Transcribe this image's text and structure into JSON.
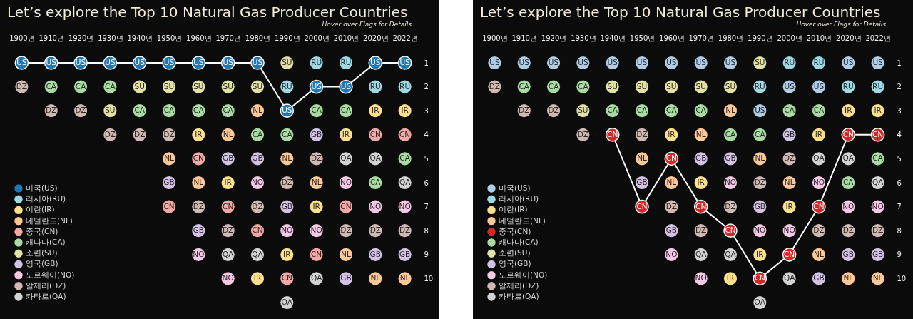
{
  "chart_data": [
    {
      "type": "line",
      "title": "Let’s explore the Top 10 Natural Gas Producer Countries",
      "subtitle": "Hover over Flags for Details",
      "categories": [
        "1900년",
        "1910년",
        "1920년",
        "1930년",
        "1940년",
        "1950년",
        "1960년",
        "1970년",
        "1980년",
        "1990년",
        "2000년",
        "2010년",
        "2020년",
        "2022년"
      ],
      "ylim": [
        11,
        1
      ],
      "yticks": [
        1,
        2,
        3,
        4,
        5,
        6,
        7,
        8,
        9,
        10
      ],
      "grid": false,
      "legend": "bottom left",
      "marker": "circle",
      "series": [
        {
          "name": "미국(US)",
          "type": "line",
          "color": "#1f77b4",
          "values": [
            1,
            1,
            1,
            1,
            1,
            1,
            1,
            1,
            1,
            3,
            2,
            2,
            1,
            1
          ],
          "value_labels": [
            "US",
            "US",
            "US",
            "US",
            "US",
            "US",
            "US",
            "US",
            "US",
            "US",
            "US",
            "US",
            "US",
            "US"
          ]
        },
        {
          "name": "러시아(RU)",
          "type": "scatter",
          "color": "#9edae5",
          "values": [
            null,
            null,
            null,
            null,
            null,
            null,
            null,
            null,
            null,
            2,
            1,
            1,
            2,
            2
          ],
          "value_labels": [
            null,
            null,
            null,
            null,
            null,
            null,
            null,
            null,
            null,
            "RU",
            "RU",
            "RU",
            "RU",
            "RU"
          ]
        },
        {
          "name": "이란(IR)",
          "type": "scatter",
          "color": "#fde08b",
          "values": [
            null,
            null,
            null,
            null,
            null,
            null,
            4,
            6,
            10,
            9,
            7,
            4,
            3,
            3
          ],
          "value_labels": [
            null,
            null,
            null,
            null,
            null,
            null,
            "IR",
            "IR",
            "IR",
            "IR",
            "IR",
            "IR",
            "IR",
            "IR"
          ]
        },
        {
          "name": "네덜란드(NL)",
          "type": "scatter",
          "color": "#ffc896",
          "values": [
            null,
            null,
            null,
            null,
            null,
            5,
            6,
            4,
            3,
            5,
            6,
            9,
            10,
            10
          ],
          "value_labels": [
            null,
            null,
            null,
            null,
            null,
            "NL",
            "NL",
            "NL",
            "NL",
            "NL",
            "NL",
            "NL",
            "NL",
            "NL"
          ]
        },
        {
          "name": "중국(CN)",
          "type": "scatter",
          "color": "#f4a7a3",
          "values": [
            null,
            null,
            null,
            null,
            null,
            7,
            5,
            7,
            8,
            10,
            9,
            7,
            4,
            4
          ],
          "value_labels": [
            null,
            null,
            null,
            null,
            null,
            "CN",
            "CN",
            "CN",
            "CN",
            "CN",
            "CN",
            "CN",
            "CN",
            "CN"
          ]
        },
        {
          "name": "캐나다(CA)",
          "type": "scatter",
          "color": "#a8dca3",
          "values": [
            null,
            2,
            2,
            2,
            3,
            3,
            3,
            3,
            4,
            4,
            3,
            3,
            6,
            5
          ],
          "value_labels": [
            null,
            "CA",
            "CA",
            "CA",
            "CA",
            "CA",
            "CA",
            "CA",
            "CA",
            "CA",
            "CA",
            "CA",
            "CA",
            "CA"
          ]
        },
        {
          "name": "소련(SU)",
          "type": "scatter",
          "color": "#e2e3a3",
          "values": [
            null,
            null,
            null,
            3,
            2,
            2,
            2,
            2,
            2,
            1,
            null,
            null,
            null,
            null
          ],
          "value_labels": [
            null,
            null,
            null,
            "SU",
            "SU",
            "SU",
            "SU",
            "SU",
            "SU",
            "SU",
            null,
            null,
            null,
            null
          ]
        },
        {
          "name": "영국(GB)",
          "type": "scatter",
          "color": "#d2c2e6",
          "values": [
            null,
            null,
            null,
            null,
            null,
            6,
            8,
            5,
            5,
            7,
            4,
            10,
            9,
            9
          ],
          "value_labels": [
            null,
            null,
            null,
            null,
            null,
            "GB",
            "GB",
            "GB",
            "GB",
            "GB",
            "GB",
            "GB",
            "GB",
            "GB"
          ]
        },
        {
          "name": "노르웨이(NO)",
          "type": "scatter",
          "color": "#f7c8e6",
          "values": [
            null,
            null,
            null,
            null,
            null,
            null,
            9,
            10,
            6,
            8,
            8,
            6,
            7,
            7
          ],
          "value_labels": [
            null,
            null,
            null,
            null,
            null,
            null,
            "NO",
            "NO",
            "NO",
            "NO",
            "NO",
            "NO",
            "NO",
            "NO"
          ]
        },
        {
          "name": "알제리(DZ)",
          "type": "scatter",
          "color": "#d2b8b2",
          "values": [
            2,
            3,
            3,
            4,
            4,
            4,
            7,
            8,
            7,
            6,
            5,
            8,
            8,
            8
          ],
          "value_labels": [
            "DZ",
            "DZ",
            "DZ",
            "DZ",
            "DZ",
            "DZ",
            "DZ",
            "DZ",
            "DZ",
            "DZ",
            "DZ",
            "DZ",
            "DZ",
            "DZ"
          ]
        },
        {
          "name": "카타르(QA)",
          "type": "scatter",
          "color": "#d3d3d3",
          "values": [
            null,
            null,
            null,
            null,
            null,
            null,
            null,
            9,
            9,
            11,
            10,
            5,
            5,
            6
          ],
          "value_labels": [
            null,
            null,
            null,
            null,
            null,
            null,
            null,
            "QA",
            "QA",
            "QA",
            "QA",
            "QA",
            "QA",
            "QA"
          ]
        }
      ]
    },
    {
      "type": "line",
      "title": "Let’s explore the Top 10 Natural Gas Producer Countries",
      "subtitle": "Hover over Flags for Details",
      "categories": [
        "1900년",
        "1910년",
        "1920년",
        "1930년",
        "1940년",
        "1950년",
        "1960년",
        "1970년",
        "1980년",
        "1990년",
        "2000년",
        "2010년",
        "2020년",
        "2022년"
      ],
      "ylim": [
        11,
        1
      ],
      "yticks": [
        1,
        2,
        3,
        4,
        5,
        6,
        7,
        8,
        9,
        10
      ],
      "grid": false,
      "legend": "bottom left",
      "marker": "circle",
      "series": [
        {
          "name": "미국(US)",
          "type": "scatter",
          "color": "#aecde8",
          "values": [
            1,
            1,
            1,
            1,
            1,
            1,
            1,
            1,
            1,
            3,
            2,
            2,
            1,
            1
          ],
          "value_labels": [
            "US",
            "US",
            "US",
            "US",
            "US",
            "US",
            "US",
            "US",
            "US",
            "US",
            "US",
            "US",
            "US",
            "US"
          ]
        },
        {
          "name": "러시아(RU)",
          "type": "scatter",
          "color": "#9edae5",
          "values": [
            null,
            null,
            null,
            null,
            null,
            null,
            null,
            null,
            null,
            2,
            1,
            1,
            2,
            2
          ],
          "value_labels": [
            null,
            null,
            null,
            null,
            null,
            null,
            null,
            null,
            null,
            "RU",
            "RU",
            "RU",
            "RU",
            "RU"
          ]
        },
        {
          "name": "이란(IR)",
          "type": "scatter",
          "color": "#fde08b",
          "values": [
            null,
            null,
            null,
            null,
            null,
            null,
            4,
            6,
            10,
            9,
            7,
            4,
            3,
            3
          ],
          "value_labels": [
            null,
            null,
            null,
            null,
            null,
            null,
            "IR",
            "IR",
            "IR",
            "IR",
            "IR",
            "IR",
            "IR",
            "IR"
          ]
        },
        {
          "name": "네덜란드(NL)",
          "type": "scatter",
          "color": "#ffc896",
          "values": [
            null,
            null,
            null,
            null,
            null,
            5,
            6,
            4,
            3,
            5,
            6,
            9,
            10,
            10
          ],
          "value_labels": [
            null,
            null,
            null,
            null,
            null,
            "NL",
            "NL",
            "NL",
            "NL",
            "NL",
            "NL",
            "NL",
            "NL",
            "NL"
          ]
        },
        {
          "name": "중국(CN)",
          "type": "line",
          "color": "#d62728",
          "values": [
            null,
            null,
            null,
            null,
            4,
            7,
            5,
            7,
            8,
            10,
            9,
            7,
            4,
            4
          ],
          "value_labels": [
            null,
            null,
            null,
            null,
            "CN",
            "CN",
            "CN",
            "CN",
            "CN",
            "CN",
            "CN",
            "CN",
            "CN",
            "CN"
          ]
        },
        {
          "name": "캐나다(CA)",
          "type": "scatter",
          "color": "#a8dca3",
          "values": [
            null,
            2,
            2,
            2,
            3,
            3,
            3,
            3,
            4,
            4,
            3,
            3,
            6,
            5
          ],
          "value_labels": [
            null,
            "CA",
            "CA",
            "CA",
            "CA",
            "CA",
            "CA",
            "CA",
            "CA",
            "CA",
            "CA",
            "CA",
            "CA",
            "CA"
          ]
        },
        {
          "name": "소련(SU)",
          "type": "scatter",
          "color": "#e2e3a3",
          "values": [
            null,
            null,
            null,
            3,
            2,
            2,
            2,
            2,
            2,
            1,
            null,
            null,
            null,
            null
          ],
          "value_labels": [
            null,
            null,
            null,
            "SU",
            "SU",
            "SU",
            "SU",
            "SU",
            "SU",
            "SU",
            null,
            null,
            null,
            null
          ]
        },
        {
          "name": "영국(GB)",
          "type": "scatter",
          "color": "#d2c2e6",
          "values": [
            null,
            null,
            null,
            null,
            null,
            6,
            8,
            5,
            5,
            7,
            4,
            10,
            9,
            9
          ],
          "value_labels": [
            null,
            null,
            null,
            null,
            null,
            "GB",
            "GB",
            "GB",
            "GB",
            "GB",
            "GB",
            "GB",
            "GB",
            "GB"
          ]
        },
        {
          "name": "노르웨이(NO)",
          "type": "scatter",
          "color": "#f7c8e6",
          "values": [
            null,
            null,
            null,
            null,
            null,
            null,
            9,
            10,
            6,
            8,
            8,
            6,
            7,
            7
          ],
          "value_labels": [
            null,
            null,
            null,
            null,
            null,
            null,
            "NO",
            "NO",
            "NO",
            "NO",
            "NO",
            "NO",
            "NO",
            "NO"
          ]
        },
        {
          "name": "알제리(DZ)",
          "type": "scatter",
          "color": "#d2b8b2",
          "values": [
            2,
            3,
            3,
            4,
            null,
            4,
            7,
            8,
            7,
            6,
            5,
            8,
            8,
            8
          ],
          "value_labels": [
            "DZ",
            "DZ",
            "DZ",
            "DZ",
            null,
            "DZ",
            "DZ",
            "DZ",
            "DZ",
            "DZ",
            "DZ",
            "DZ",
            "DZ",
            "DZ"
          ]
        },
        {
          "name": "카타르(QA)",
          "type": "scatter",
          "color": "#d3d3d3",
          "values": [
            null,
            null,
            null,
            null,
            null,
            null,
            null,
            9,
            9,
            11,
            10,
            5,
            5,
            6
          ],
          "value_labels": [
            null,
            null,
            null,
            null,
            null,
            null,
            null,
            "QA",
            "QA",
            "QA",
            "QA",
            "QA",
            "QA",
            "QA"
          ]
        }
      ]
    }
  ]
}
